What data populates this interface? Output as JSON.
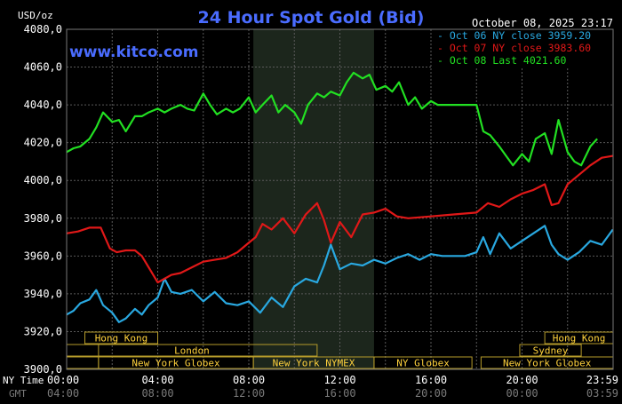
{
  "header": {
    "unit": "USD/oz",
    "title": "24 Hour Spot Gold (Bid)",
    "datetime": "October 08, 2025 23:17",
    "watermark": "www.kitco.com"
  },
  "colors": {
    "background": "#000000",
    "plot_bg": "#000000",
    "nymex_shade": "#1c261c",
    "grid": "#5a5a5a",
    "title": "#4a6cff",
    "axis_text": "#ffffff",
    "dim_text": "#7a7a7a",
    "market_box": "#b49a2a",
    "market_text": "#ffd23c",
    "oct06": "#29a8e0",
    "oct07": "#e01818",
    "oct08": "#22e022"
  },
  "axes": {
    "x_row1_label": "NY Time",
    "x_row2_label": "GMT",
    "x_ticks_ny": [
      "00:00",
      "04:00",
      "08:00",
      "12:00",
      "16:00",
      "20:00",
      "23:59"
    ],
    "x_ticks_gmt": [
      "04:00",
      "08:00",
      "12:00",
      "16:00",
      "20:00",
      "00:00",
      "03:59"
    ]
  },
  "markets": [
    {
      "label": "Hong Kong",
      "row": 0
    },
    {
      "label": "Hong Kong",
      "row": 0
    },
    {
      "label": "London",
      "row": 1
    },
    {
      "label": "Sydney",
      "row": 1
    },
    {
      "label": "New York Globex",
      "row": 2
    },
    {
      "label": "New York NYMEX",
      "row": 2
    },
    {
      "label": "NY Globex",
      "row": 2
    },
    {
      "label": "New York Globex",
      "row": 2
    }
  ],
  "chart_data": {
    "type": "line",
    "title": "24 Hour Spot Gold (Bid)",
    "ylabel": "USD/oz",
    "ylim": [
      3900,
      4080
    ],
    "y_ticks": [
      "3900,0",
      "3920,0",
      "3940,0",
      "3960,0",
      "3980,0",
      "4000,0",
      "4020,0",
      "4040,0",
      "4060,0",
      "4080,0"
    ],
    "x_unit": "hours (NY time)",
    "xlim": [
      0,
      24
    ],
    "grid": true,
    "legend_placement": "top-right",
    "legend": [
      {
        "text": "- Oct 06 NY close 3959.20",
        "series": 0
      },
      {
        "text": "- Oct 07 NY close 3983.60",
        "series": 1
      },
      {
        "text": "- Oct 08 Last 4021.60",
        "series": 2
      }
    ],
    "series": [
      {
        "label": "Oct 06",
        "x": [
          0,
          0.3,
          0.6,
          1.0,
          1.3,
          1.6,
          2.0,
          2.3,
          2.6,
          3.0,
          3.3,
          3.6,
          4.0,
          4.3,
          4.6,
          5.0,
          5.5,
          6.0,
          6.5,
          7.0,
          7.5,
          8.0,
          8.5,
          9.0,
          9.5,
          10.0,
          10.5,
          11.0,
          11.3,
          11.6,
          12.0,
          12.5,
          13.0,
          13.5,
          14.0,
          14.5,
          15.0,
          15.5,
          16.0,
          16.5,
          17.0,
          17.5,
          18.0,
          18.3,
          18.6,
          19.0,
          19.5,
          20.0,
          20.5,
          21.0,
          21.3,
          21.6,
          22.0,
          22.5,
          23.0,
          23.5,
          23.99
        ],
        "y": [
          3929,
          3931,
          3935,
          3937,
          3942,
          3934,
          3930,
          3925,
          3927,
          3932,
          3929,
          3934,
          3938,
          3948,
          3941,
          3940,
          3942,
          3936,
          3941,
          3935,
          3934,
          3936,
          3930,
          3938,
          3933,
          3944,
          3948,
          3946,
          3955,
          3966,
          3953,
          3956,
          3955,
          3958,
          3956,
          3959,
          3961,
          3958,
          3961,
          3960,
          3960,
          3960,
          3962,
          3970,
          3961,
          3972,
          3964,
          3968,
          3972,
          3976,
          3966,
          3961,
          3958,
          3962,
          3968,
          3966,
          3974
        ]
      },
      {
        "label": "Oct 07",
        "x": [
          0,
          0.5,
          1.0,
          1.5,
          1.9,
          2.2,
          2.6,
          3.0,
          3.3,
          3.6,
          4.0,
          4.3,
          4.6,
          5.0,
          5.5,
          6.0,
          6.5,
          7.0,
          7.5,
          8.0,
          8.3,
          8.6,
          9.0,
          9.5,
          10.0,
          10.5,
          11.0,
          11.3,
          11.6,
          12.0,
          12.5,
          13.0,
          13.5,
          14.0,
          14.5,
          15.0,
          16.0,
          17.0,
          18.0,
          18.5,
          19.0,
          19.5,
          20.0,
          20.5,
          21.0,
          21.3,
          21.6,
          22.0,
          22.5,
          23.0,
          23.5,
          23.99
        ],
        "y": [
          3972,
          3973,
          3975,
          3975,
          3964,
          3962,
          3963,
          3963,
          3960,
          3954,
          3946,
          3948,
          3950,
          3951,
          3954,
          3957,
          3958,
          3959,
          3962,
          3967,
          3970,
          3977,
          3974,
          3980,
          3972,
          3982,
          3988,
          3979,
          3967,
          3978,
          3970,
          3982,
          3983,
          3985,
          3981,
          3980,
          3981,
          3982,
          3983,
          3988,
          3986,
          3990,
          3993,
          3995,
          3998,
          3987,
          3988,
          3998,
          4003,
          4008,
          4012,
          4013
        ]
      },
      {
        "label": "Oct 08",
        "x": [
          0,
          0.3,
          0.6,
          1.0,
          1.3,
          1.6,
          2.0,
          2.3,
          2.6,
          3.0,
          3.3,
          3.6,
          4.0,
          4.3,
          4.6,
          5.0,
          5.3,
          5.6,
          6.0,
          6.3,
          6.6,
          7.0,
          7.3,
          7.6,
          8.0,
          8.3,
          8.6,
          9.0,
          9.3,
          9.6,
          10.0,
          10.3,
          10.6,
          11.0,
          11.3,
          11.6,
          12.0,
          12.3,
          12.6,
          13.0,
          13.3,
          13.6,
          14.0,
          14.3,
          14.6,
          15.0,
          15.3,
          15.6,
          16.0,
          16.3,
          16.6,
          17.0,
          17.5,
          18.0,
          18.3,
          18.6,
          19.0,
          19.3,
          19.6,
          20.0,
          20.3,
          20.6,
          21.0,
          21.3,
          21.6,
          22.0,
          22.3,
          22.6,
          23.0,
          23.3
        ],
        "y": [
          4015,
          4017,
          4018,
          4022,
          4028,
          4036,
          4031,
          4032,
          4026,
          4034,
          4034,
          4036,
          4038,
          4036,
          4038,
          4040,
          4038,
          4037,
          4046,
          4040,
          4035,
          4038,
          4036,
          4038,
          4044,
          4036,
          4040,
          4045,
          4036,
          4040,
          4036,
          4030,
          4040,
          4046,
          4044,
          4047,
          4045,
          4052,
          4057,
          4054,
          4056,
          4048,
          4050,
          4047,
          4052,
          4040,
          4044,
          4038,
          4042,
          4040,
          4040,
          4040,
          4040,
          4040,
          4026,
          4024,
          4018,
          4013,
          4008,
          4014,
          4010,
          4022,
          4025,
          4014,
          4032,
          4015,
          4010,
          4008,
          4018,
          4022
        ]
      }
    ]
  }
}
